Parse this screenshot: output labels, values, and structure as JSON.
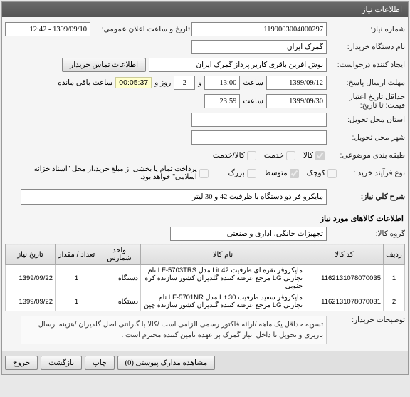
{
  "header": {
    "title": "اطلاعات نیاز"
  },
  "labels": {
    "niaz_no": "شماره نیاز:",
    "buyer_org": "نام دستگاه خریدار:",
    "creator": "ایجاد کننده درخواست:",
    "deadline": "مهلت ارسال پاسخ:",
    "min_price_date": "حداقل تاریخ اعتبار قیمت: تا تاریخ:",
    "deliver_province": "استان محل تحویل:",
    "deliver_city": "شهر محل تحویل:",
    "budget_class": "طبقه بندی موضوعی:",
    "buy_type": "نوع فرآیند خرید :",
    "public_date": "تاریخ و ساعت اعلان عمومی:",
    "contact_btn": "اطلاعات تماس خریدار",
    "hour": "ساعت",
    "and": "و",
    "day": "روز و",
    "remain": "ساعت باقی مانده",
    "desc_title": "شرح کلي نياز:",
    "goods_header": "اطلاعات کالاهای مورد نیاز",
    "goods_group": "گروه کالا:",
    "buyer_notes": "توضیحات خریدار:",
    "partial_pay": "پرداخت تمام یا بخشی از مبلغ خرید،از محل \"اسناد خزانه اسلامی\" خواهد بود."
  },
  "fields": {
    "niaz_no": "1199003004000297",
    "buyer_org": "گمرک ایران",
    "creator": "نوش آفرین باقری کاربر پرداز گمرک ایران",
    "deadline_date": "1399/09/12",
    "deadline_time": "13:00",
    "deadline_days": "2",
    "deadline_timer": "00:05:37",
    "min_price_date": "1399/09/30",
    "min_price_time": "23:59",
    "public_datetime": "1399/09/10 - 12:42",
    "desc": "مایکرو فر دو دستگاه با ظرفیت 42 و 30 لیتر",
    "goods_group": "تجهیزات خانگی، اداری و صنعتی",
    "notes": "تسویه حداقل یک ماهه /ارائه فاکتور رسمی الزامی است /کالا با گارانتی اصل گلدیران /هزینه ارسال باربری و تحویل تا داخل انبار گمرک بر عهده تامین  کننده محترم است ."
  },
  "checks": {
    "kala": "کالا",
    "khadamat": "خدمت",
    "kala_khadamat": "کالا/خدمت",
    "small": "کوچک",
    "medium": "متوسط",
    "large": "بزرگ"
  },
  "grid": {
    "cols": {
      "row": "ردیف",
      "code": "کد کالا",
      "name": "نام کالا",
      "unit": "واحد شمارش",
      "qty": "تعداد / مقدار",
      "date": "تاریخ نیاز"
    },
    "rows": [
      {
        "n": "1",
        "code": "1162131078070035",
        "name": "مایکروفر نقره ای ظرفیت 42 Lit مدل LF-5703TRS نام تجارتی LG مرجع عرضه کننده گلدیران کشور سازنده کره جنوبی",
        "unit": "دستگاه",
        "qty": "1",
        "date": "1399/09/22"
      },
      {
        "n": "2",
        "code": "1162131078070031",
        "name": "مایکروفر سفید ظرفیت 30 Lit مدل LF-5701NR نام تجارتی LG مرجع عرضه کننده گلدیران کشور سازنده چین",
        "unit": "دستگاه",
        "qty": "1",
        "date": "1399/09/22"
      }
    ]
  },
  "footer": {
    "attach": "مشاهده مدارک پیوستی  (0)",
    "print": "چاپ",
    "back": "بازگشت",
    "exit": "خروج"
  }
}
